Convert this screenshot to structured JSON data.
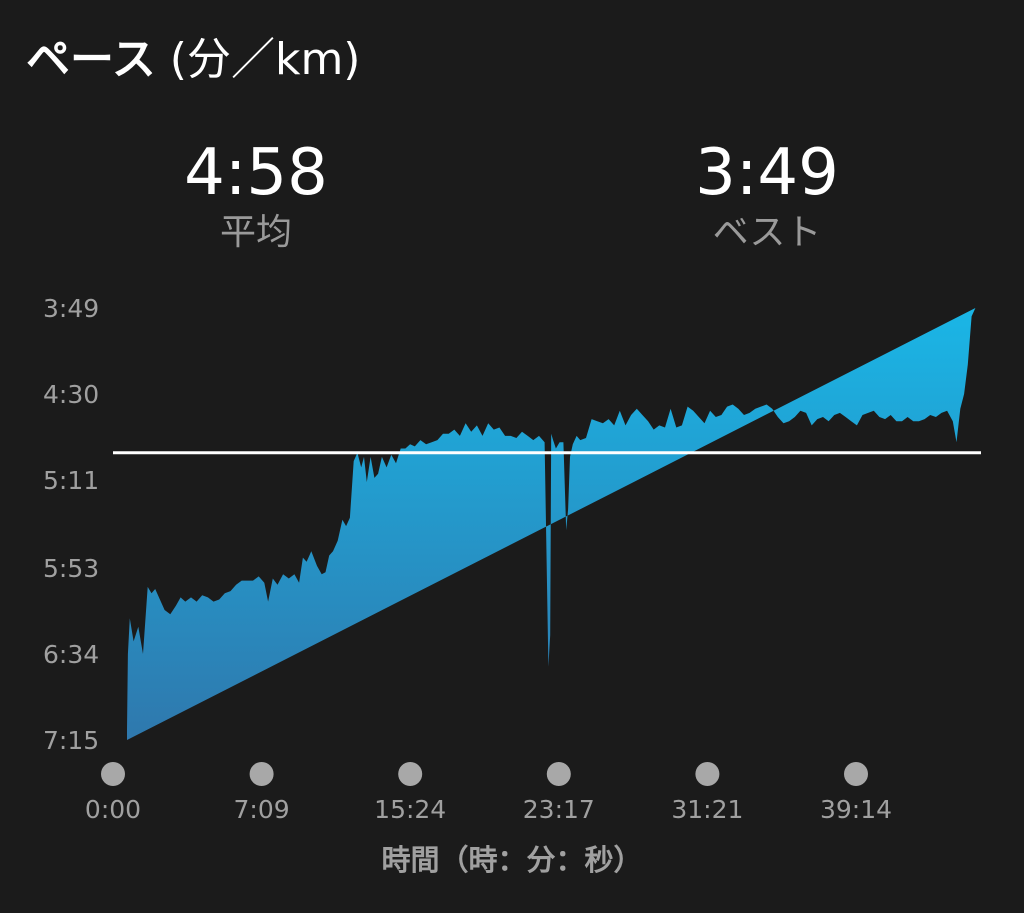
{
  "header": {
    "title_main": "ペース",
    "title_unit": " (分／km)"
  },
  "stats": {
    "average": {
      "value": "4:58",
      "label": "平均"
    },
    "best": {
      "value": "3:49",
      "label": "ベスト"
    }
  },
  "colors": {
    "background": "#1b1b1b",
    "area_top": "#1ab6e6",
    "area_bottom": "#2f78ad",
    "average_line": "#ffffff",
    "tick_text": "#a0a0a0",
    "tick_dot": "#a8a8a8"
  },
  "chart_data": {
    "type": "area",
    "title": "ペース (分／km)",
    "xlabel": "時間（時：分：秒）",
    "ylabel": "",
    "y_unit": "min/km",
    "y_inverted": true,
    "ylim_seconds": [
      229,
      435
    ],
    "y_ticks": [
      "3:49",
      "4:30",
      "5:11",
      "5:53",
      "6:34",
      "7:15"
    ],
    "y_tick_seconds": [
      229,
      270,
      311,
      353,
      394,
      435
    ],
    "x_ticks": [
      "0:00",
      "7:09",
      "15:24",
      "23:17",
      "31:21",
      "39:14"
    ],
    "x_tick_minutes": [
      0,
      7.15,
      15.4,
      23.283,
      31.35,
      39.233
    ],
    "xlim_minutes": [
      0,
      45.4
    ],
    "average_pace": "4:58",
    "average_seconds": 298,
    "x_minutes": [
      0,
      0.05,
      0.15,
      0.35,
      0.6,
      0.85,
      1.1,
      1.3,
      1.5,
      1.75,
      2.0,
      2.3,
      2.6,
      2.85,
      3.1,
      3.4,
      3.7,
      4.0,
      4.3,
      4.6,
      4.9,
      5.2,
      5.5,
      5.8,
      6.1,
      6.4,
      6.7,
      7.0,
      7.3,
      7.5,
      7.75,
      8.0,
      8.3,
      8.6,
      8.9,
      9.15,
      9.35,
      9.55,
      9.8,
      10.1,
      10.35,
      10.55,
      10.75,
      10.95,
      11.2,
      11.45,
      11.65,
      11.85,
      12.05,
      12.25,
      12.45,
      12.6,
      12.75,
      12.95,
      13.15,
      13.35,
      13.55,
      13.8,
      14.05,
      14.3,
      14.55,
      14.8,
      15.05,
      15.3,
      15.6,
      15.9,
      16.2,
      16.5,
      16.8,
      17.1,
      17.4,
      17.7,
      18.0,
      18.3,
      18.6,
      18.9,
      19.2,
      19.5,
      19.8,
      20.1,
      20.4,
      20.7,
      21.0,
      21.3,
      21.6,
      21.9,
      22.2,
      22.4,
      22.5,
      22.55,
      22.65,
      22.8,
      23.0,
      23.2,
      23.35,
      23.45,
      23.55,
      23.7,
      23.9,
      24.1,
      24.4,
      24.7,
      25.0,
      25.3,
      25.6,
      25.9,
      26.2,
      26.5,
      26.8,
      27.1,
      27.4,
      27.7,
      28.0,
      28.3,
      28.6,
      28.9,
      29.2,
      29.5,
      29.8,
      30.1,
      30.4,
      30.7,
      31.0,
      31.3,
      31.6,
      31.9,
      32.2,
      32.5,
      32.8,
      33.1,
      33.4,
      33.7,
      34.0,
      34.3,
      34.6,
      34.9,
      35.2,
      35.5,
      35.8,
      36.1,
      36.4,
      36.7,
      37.0,
      37.3,
      37.6,
      37.9,
      38.2,
      38.5,
      38.8,
      39.1,
      39.4,
      39.7,
      40.0,
      40.3,
      40.6,
      40.9,
      41.2,
      41.5,
      41.8,
      42.1,
      42.4,
      42.7,
      43.0,
      43.3,
      43.6,
      43.9,
      44.1,
      44.3,
      44.5,
      44.7,
      44.9,
      45.1,
      45.3,
      45.4
    ],
    "pace_seconds": [
      430,
      394,
      377,
      388,
      381,
      394,
      362,
      365,
      363,
      368,
      373,
      375,
      371,
      367,
      369,
      367,
      369,
      366,
      367,
      369,
      368,
      365,
      364,
      361,
      359,
      359,
      359,
      357,
      360,
      369,
      358,
      361,
      356,
      358,
      356,
      360,
      348,
      350,
      345,
      352,
      356,
      355,
      347,
      345,
      340,
      330,
      333,
      329,
      302,
      298,
      305,
      300,
      312,
      300,
      310,
      308,
      300,
      305,
      299,
      303,
      296,
      296,
      294,
      295,
      292,
      294,
      293,
      292,
      289,
      289,
      287,
      290,
      284,
      288,
      285,
      290,
      284,
      287,
      286,
      290,
      290,
      291,
      288,
      290,
      292,
      290,
      293,
      400,
      385,
      289,
      292,
      296,
      293,
      293,
      335,
      325,
      300,
      294,
      290,
      292,
      291,
      282,
      283,
      284,
      282,
      285,
      278,
      285,
      280,
      277,
      280,
      283,
      287,
      285,
      286,
      277,
      286,
      285,
      276,
      278,
      281,
      284,
      278,
      281,
      280,
      276,
      275,
      277,
      280,
      279,
      277,
      276,
      275,
      277,
      281,
      284,
      283,
      281,
      278,
      279,
      285,
      282,
      281,
      283,
      280,
      279,
      281,
      283,
      285,
      280,
      279,
      278,
      281,
      282,
      280,
      283,
      283,
      281,
      283,
      283,
      282,
      280,
      281,
      279,
      278,
      283,
      293,
      277,
      270,
      256,
      233,
      229
    ]
  }
}
